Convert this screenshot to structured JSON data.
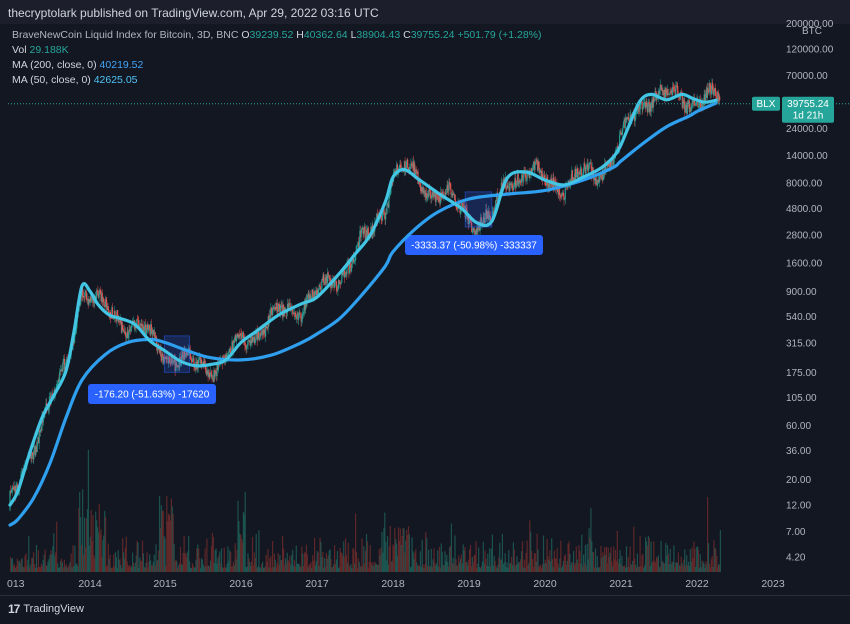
{
  "header": {
    "published": "thecryptolark published on TradingView.com, Apr 29, 2022 03:16 UTC"
  },
  "legend": {
    "symbol_title": "BraveNewCoin Liquid Index for Bitcoin, 3D, BNC",
    "ohlc": {
      "o_label": "O",
      "o_value": "39239.52",
      "h_label": "H",
      "h_value": "40362.64",
      "l_label": "L",
      "l_value": "38904.43",
      "c_label": "C",
      "c_value": "39755.24",
      "change": "+501.79 (+1.28%)"
    },
    "vol_label": "Vol",
    "vol_value": "29.188K",
    "ma200_label": "MA (200, close, 0)",
    "ma200_value": "40219.52",
    "ma50_label": "MA (50, close, 0)",
    "ma50_value": "42625.05"
  },
  "footer": {
    "brand": "TradingView",
    "logo_mark": "17"
  },
  "colors": {
    "background": "#131722",
    "ma200": "#2f9ff0",
    "ma50": "#43c5e4",
    "candle_up": "#26a69a",
    "candle_down": "#ef5350",
    "annotation_box": "#2962ff",
    "price_tag": "#26a69a"
  },
  "chart_data": {
    "type": "line",
    "scale": "log",
    "grid": false,
    "title": "BraveNewCoin Liquid Index for Bitcoin, 3D, BNC",
    "currency": "BTC",
    "ylim": [
      3.5,
      200000
    ],
    "x_ticks": [
      "013",
      "2014",
      "2015",
      "2016",
      "2017",
      "2018",
      "2019",
      "2020",
      "2021",
      "2022",
      "2023"
    ],
    "y_ticks": [
      "200000.00",
      "120000.00",
      "70000.00",
      "40000.00",
      "24000.00",
      "14000.00",
      "8000.00",
      "4800.00",
      "2800.00",
      "1600.00",
      "900.00",
      "540.00",
      "315.00",
      "175.00",
      "105.00",
      "60.00",
      "36.00",
      "20.00",
      "12.00",
      "7.00",
      "4.20"
    ],
    "price_line": 39755.24,
    "price_label": {
      "symbol": "BLX",
      "value": "39755.24",
      "countdown": "1d 21h"
    },
    "series": [
      {
        "name": "MA (200, close, 0)",
        "x": [
          2013.0,
          2013.1,
          2013.3,
          2013.5,
          2013.7,
          2013.9,
          2014.2,
          2014.5,
          2014.8,
          2015.0,
          2015.3,
          2015.6,
          2016.0,
          2016.4,
          2016.8,
          2017.0,
          2017.3,
          2017.6,
          2017.9,
          2018.0,
          2018.3,
          2018.6,
          2019.0,
          2019.5,
          2020.0,
          2020.5,
          2020.9,
          2021.0,
          2021.3,
          2021.6,
          2021.9,
          2022.0,
          2022.25
        ],
        "y": [
          8,
          9,
          14,
          28,
          70,
          150,
          250,
          320,
          340,
          320,
          270,
          235,
          225,
          248,
          320,
          380,
          520,
          850,
          1500,
          2000,
          3200,
          4500,
          5800,
          6400,
          6900,
          8500,
          11000,
          12500,
          18000,
          25000,
          31000,
          34000,
          40219.52
        ]
      },
      {
        "name": "MA (50, close, 0)",
        "x": [
          2013.0,
          2013.1,
          2013.25,
          2013.4,
          2013.55,
          2013.7,
          2013.8,
          2013.9,
          2014.0,
          2014.1,
          2014.25,
          2014.4,
          2014.6,
          2014.8,
          2015.0,
          2015.2,
          2015.4,
          2015.6,
          2015.8,
          2016.0,
          2016.2,
          2016.5,
          2016.8,
          2017.0,
          2017.3,
          2017.5,
          2017.7,
          2017.9,
          2018.0,
          2018.15,
          2018.35,
          2018.6,
          2018.9,
          2019.1,
          2019.3,
          2019.5,
          2019.75,
          2020.0,
          2020.25,
          2020.5,
          2020.75,
          2020.95,
          2021.1,
          2021.25,
          2021.4,
          2021.6,
          2021.8,
          2021.95,
          2022.1,
          2022.25
        ],
        "y": [
          12,
          16,
          35,
          70,
          110,
          180,
          400,
          1000,
          900,
          700,
          560,
          520,
          460,
          330,
          270,
          220,
          200,
          205,
          225,
          320,
          400,
          560,
          700,
          800,
          1300,
          1900,
          2800,
          5500,
          9000,
          10500,
          8500,
          6500,
          4800,
          3600,
          3700,
          8800,
          10000,
          8500,
          7700,
          9000,
          11000,
          15000,
          25000,
          42000,
          48000,
          43000,
          48000,
          44000,
          41000,
          42625.05
        ]
      }
    ],
    "annotations": [
      {
        "label": "-176.20 (-51.63%) -17620",
        "x_range": [
          2014.99,
          2015.32
        ],
        "y_range": [
          175,
          365
        ]
      },
      {
        "label": "-3333.37 (-50.98%) -333337",
        "x_range": [
          2018.95,
          2019.3
        ],
        "y_range": [
          3300,
          6700
        ]
      }
    ]
  }
}
